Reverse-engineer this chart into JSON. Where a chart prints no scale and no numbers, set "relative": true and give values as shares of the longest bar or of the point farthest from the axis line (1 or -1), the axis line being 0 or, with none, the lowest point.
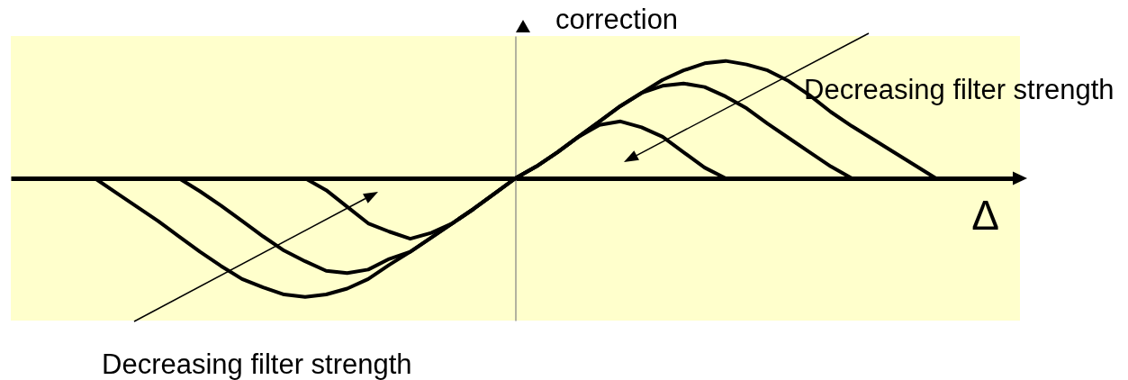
{
  "chart_data": {
    "type": "line",
    "relative": true,
    "categories": [
      null,
      null,
      null,
      null,
      null,
      null,
      null,
      null,
      null,
      null,
      null,
      null,
      null,
      null,
      null,
      null,
      null,
      null,
      null,
      null,
      null,
      null,
      null,
      null,
      null,
      null,
      null,
      null,
      null,
      null,
      null,
      null,
      null,
      null,
      null,
      null,
      null,
      null,
      null,
      null,
      null,
      null,
      null,
      null,
      null,
      null,
      null,
      null,
      null
    ],
    "series": [
      {
        "color": "#000000",
        "values": [
          null,
          null,
          null,
          null,
          0,
          -0.12,
          -0.24,
          -0.36,
          -0.49,
          -0.62,
          -0.74,
          -0.85,
          -0.92,
          -0.98,
          -1,
          -0.98,
          -0.93,
          -0.85,
          -0.73,
          -0.62,
          -0.5,
          -0.38,
          -0.26,
          -0.13,
          0,
          0.1,
          0.22,
          0.35,
          0.48,
          0.61,
          0.72,
          0.83,
          0.91,
          0.97,
          0.99,
          0.96,
          0.91,
          0.82,
          0.7,
          0.56,
          0.44,
          0.33,
          0.22,
          0.11,
          0,
          null,
          null,
          null,
          null
        ]
      },
      {
        "color": "#000000",
        "values": [
          null,
          null,
          null,
          null,
          null,
          null,
          null,
          null,
          0,
          -0.11,
          -0.23,
          -0.36,
          -0.49,
          -0.61,
          -0.7,
          -0.78,
          -0.8,
          -0.77,
          -0.68,
          -0.62,
          -0.5,
          -0.38,
          -0.26,
          -0.13,
          0,
          0.1,
          0.22,
          0.35,
          0.48,
          0.61,
          0.72,
          0.78,
          0.8,
          0.77,
          0.69,
          0.59,
          0.46,
          0.34,
          0.22,
          0.1,
          0,
          null,
          null,
          null,
          null,
          null,
          null,
          null,
          null
        ]
      },
      {
        "color": "#000000",
        "values": [
          null,
          null,
          null,
          null,
          null,
          null,
          null,
          null,
          null,
          null,
          null,
          null,
          null,
          null,
          0,
          -0.1,
          -0.24,
          -0.38,
          -0.45,
          -0.51,
          -0.46,
          -0.38,
          -0.26,
          -0.13,
          0,
          0.1,
          0.22,
          0.35,
          0.45,
          0.48,
          0.43,
          0.35,
          0.22,
          0.09,
          0,
          null,
          null,
          null,
          null,
          null,
          null,
          null,
          null,
          null,
          null,
          null,
          null,
          null,
          null
        ]
      }
    ],
    "xlabel": "Δ",
    "ylabel": "correction",
    "annotations": [
      "Decreasing filter strength",
      "Decreasing filter strength"
    ]
  }
}
